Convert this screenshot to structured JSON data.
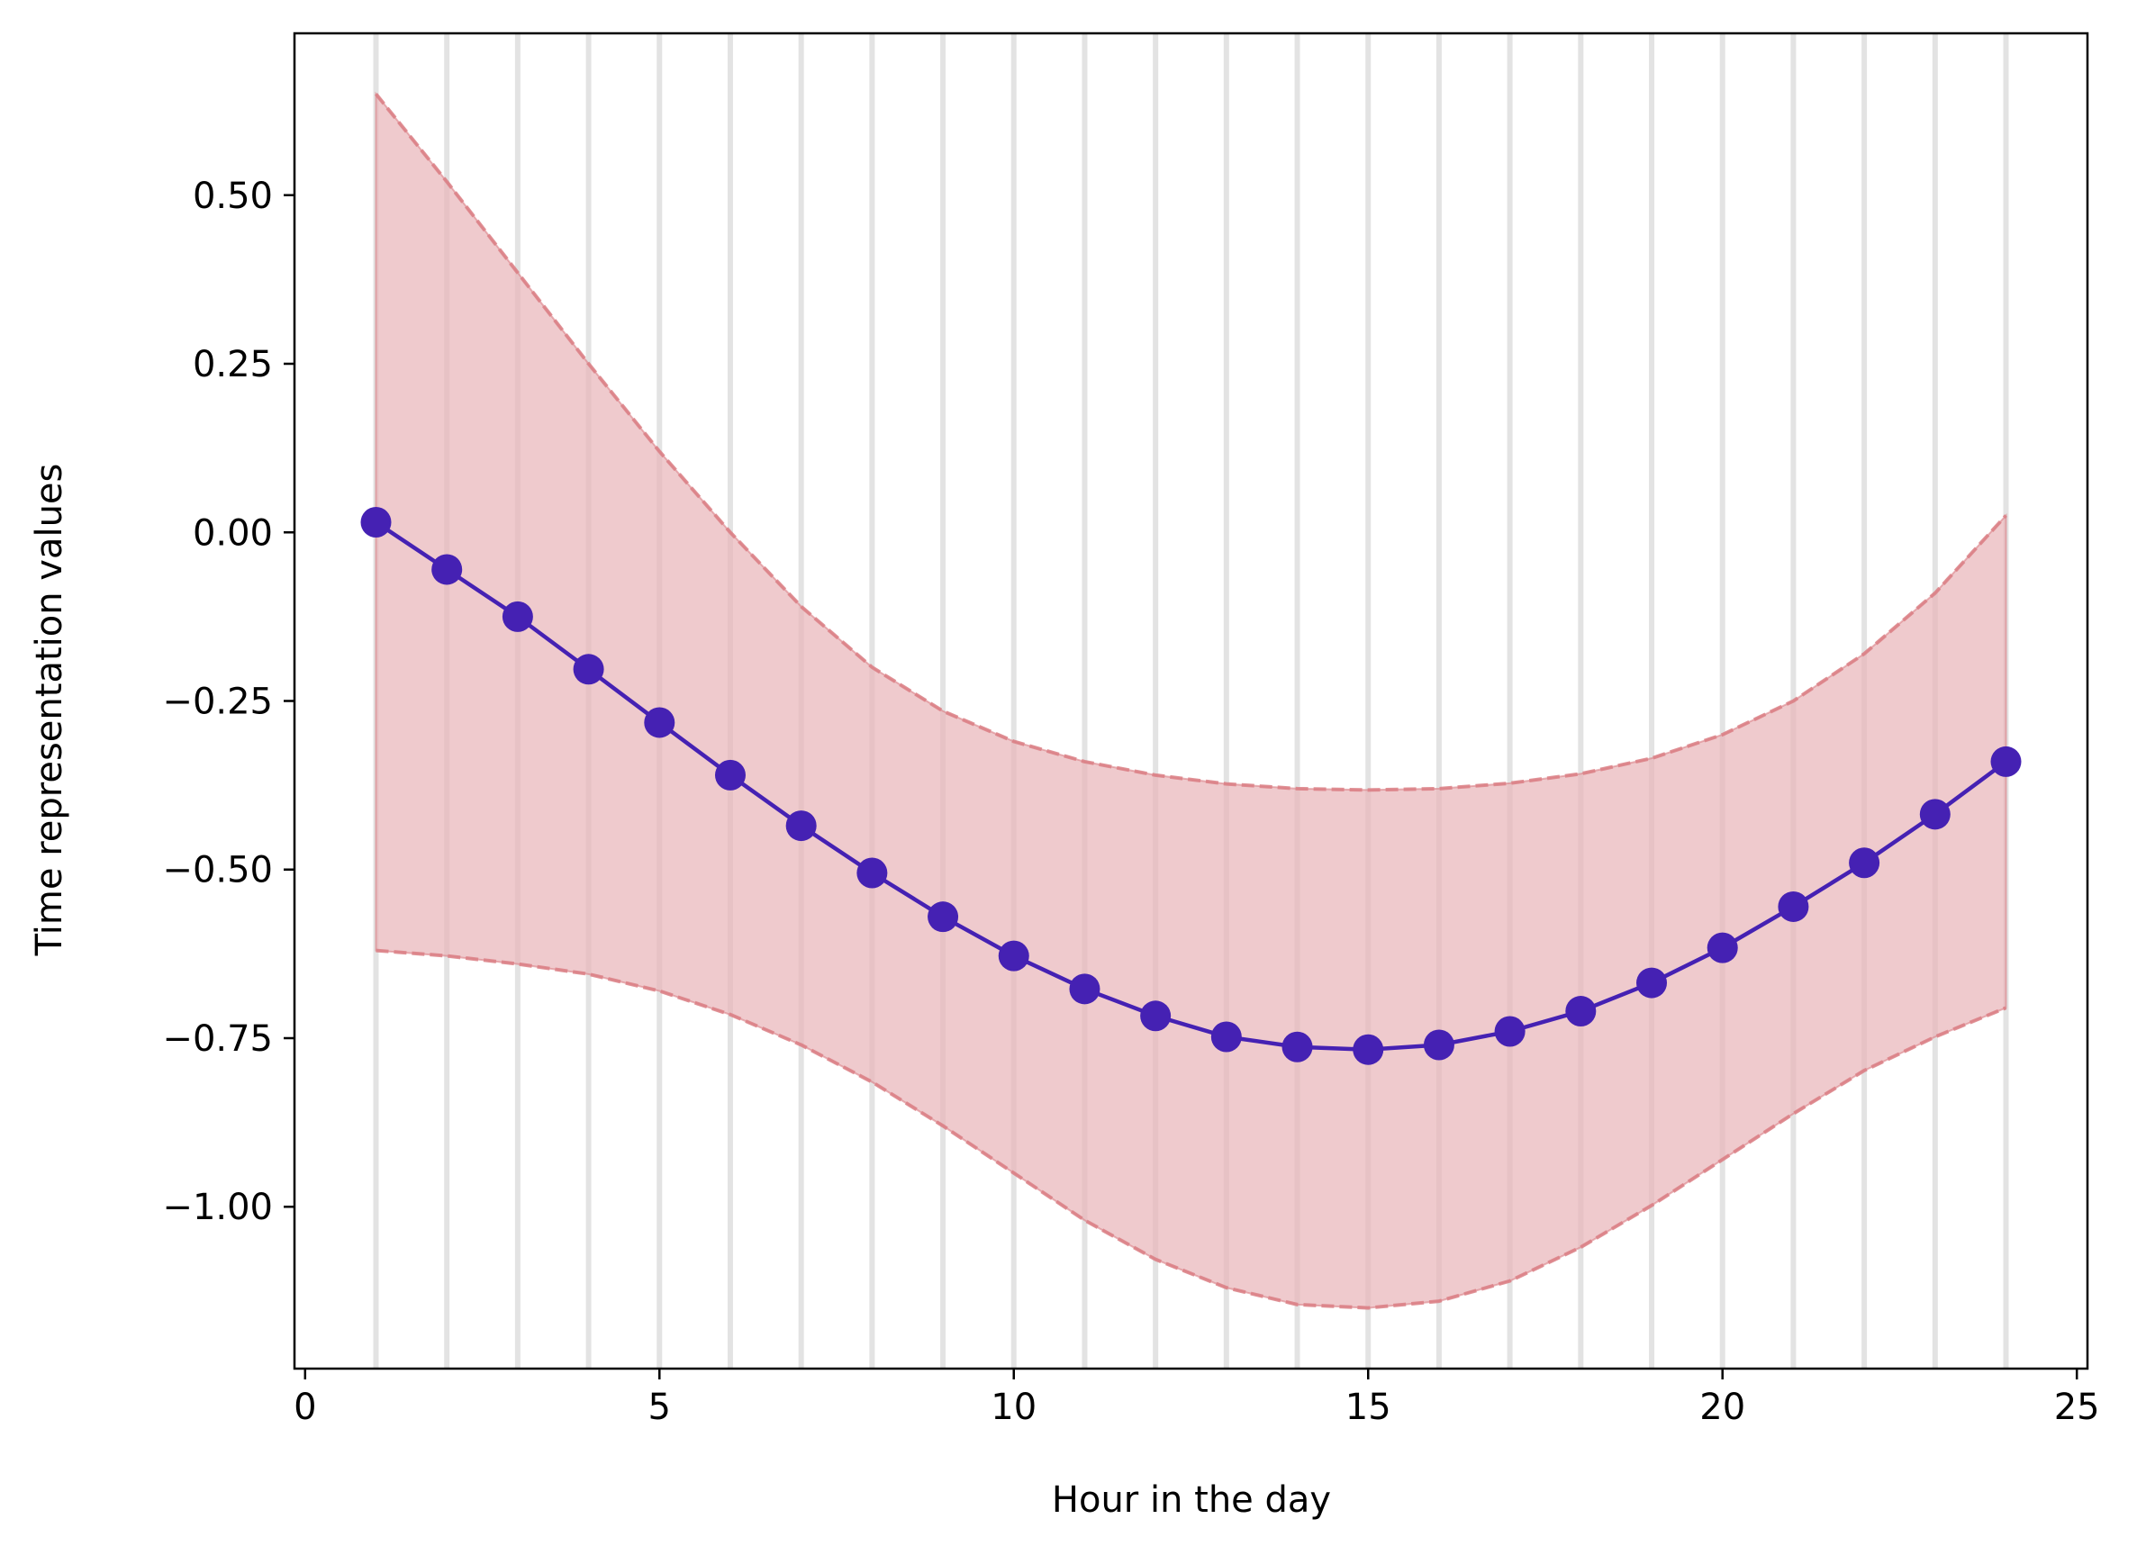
{
  "chart_data": {
    "type": "line",
    "title": "",
    "xlabel": "Hour in the day",
    "ylabel": "Time representation values",
    "xlim": [
      -0.15,
      25.15
    ],
    "ylim": [
      -1.24,
      0.74
    ],
    "xticks": [
      0,
      5,
      10,
      15,
      20,
      25
    ],
    "xtick_labels": [
      "0",
      "5",
      "10",
      "15",
      "20",
      "25"
    ],
    "yticks": [
      0.5,
      0.25,
      0.0,
      -0.25,
      -0.5,
      -0.75,
      -1.0
    ],
    "ytick_labels": [
      "0.50",
      "0.25",
      "0.00",
      "−0.25",
      "−0.50",
      "−0.75",
      "−1.00"
    ],
    "grid": "vertical lines at each hour",
    "x": [
      1,
      2,
      3,
      4,
      5,
      6,
      7,
      8,
      9,
      10,
      11,
      12,
      13,
      14,
      15,
      16,
      17,
      18,
      19,
      20,
      21,
      22,
      23,
      24
    ],
    "series": [
      {
        "values": [
          0.015,
          -0.055,
          -0.125,
          -0.203,
          -0.282,
          -0.36,
          -0.435,
          -0.505,
          -0.57,
          -0.628,
          -0.677,
          -0.717,
          -0.748,
          -0.763,
          -0.767,
          -0.76,
          -0.74,
          -0.71,
          -0.668,
          -0.616,
          -0.555,
          -0.49,
          -0.418,
          -0.34
        ],
        "color": "#4521b3"
      }
    ],
    "band": {
      "upper": [
        0.65,
        0.52,
        0.385,
        0.25,
        0.12,
        0.0,
        -0.11,
        -0.2,
        -0.265,
        -0.31,
        -0.34,
        -0.36,
        -0.373,
        -0.38,
        -0.382,
        -0.38,
        -0.372,
        -0.358,
        -0.335,
        -0.3,
        -0.25,
        -0.18,
        -0.09,
        0.025
      ],
      "lower": [
        -0.62,
        -0.628,
        -0.64,
        -0.655,
        -0.68,
        -0.715,
        -0.76,
        -0.815,
        -0.88,
        -0.95,
        -1.02,
        -1.078,
        -1.12,
        -1.145,
        -1.15,
        -1.14,
        -1.11,
        -1.06,
        -0.998,
        -0.93,
        -0.862,
        -0.798,
        -0.748,
        -0.705
      ],
      "fill": "#e8b4b8",
      "edge": "#db7f85"
    }
  }
}
